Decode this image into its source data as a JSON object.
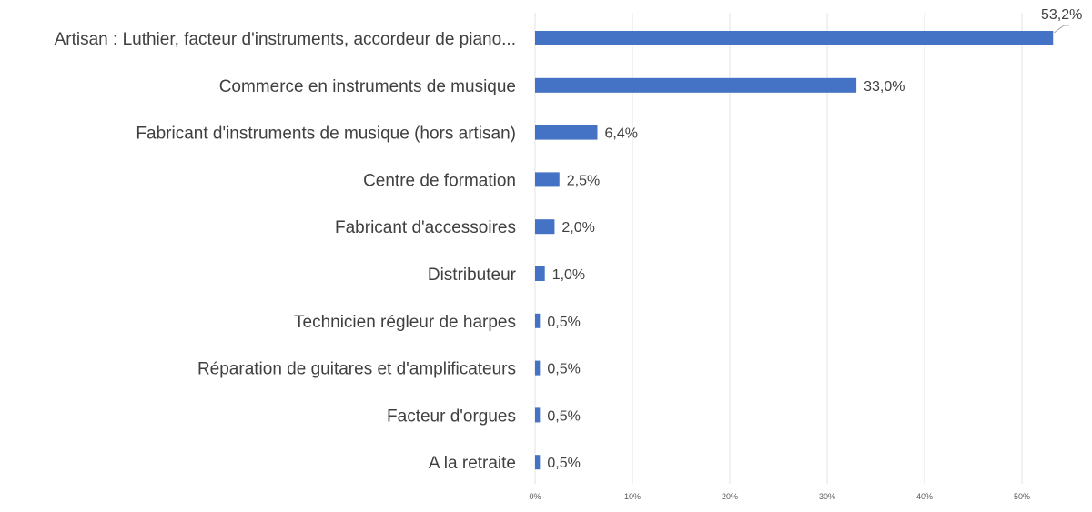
{
  "chart_data": {
    "type": "bar",
    "orientation": "horizontal",
    "categories": [
      "Artisan : Luthier, facteur d'instruments, accordeur de piano...",
      "Commerce en instruments de musique",
      "Fabricant d'instruments de musique (hors artisan)",
      "Centre de formation",
      "Fabricant d'accessoires",
      "Distributeur",
      "Technicien régleur de harpes",
      "Réparation de guitares et d'amplificateurs",
      "Facteur d'orgues",
      "A la retraite"
    ],
    "values": [
      53.2,
      33.0,
      6.4,
      2.5,
      2.0,
      1.0,
      0.5,
      0.5,
      0.5,
      0.5
    ],
    "value_labels": [
      "53,2%",
      "33,0%",
      "6,4%",
      "2,5%",
      "2,0%",
      "1,0%",
      "0,5%",
      "0,5%",
      "0,5%",
      "0,5%"
    ],
    "x_ticks": [
      0,
      10,
      20,
      30,
      40,
      50
    ],
    "x_tick_labels": [
      "0%",
      "10%",
      "20%",
      "30%",
      "40%",
      "50%"
    ],
    "xlim": [
      0,
      55
    ],
    "grid": "vertical",
    "bar_color": "#4472c4",
    "title": "",
    "xlabel": "",
    "ylabel": ""
  }
}
